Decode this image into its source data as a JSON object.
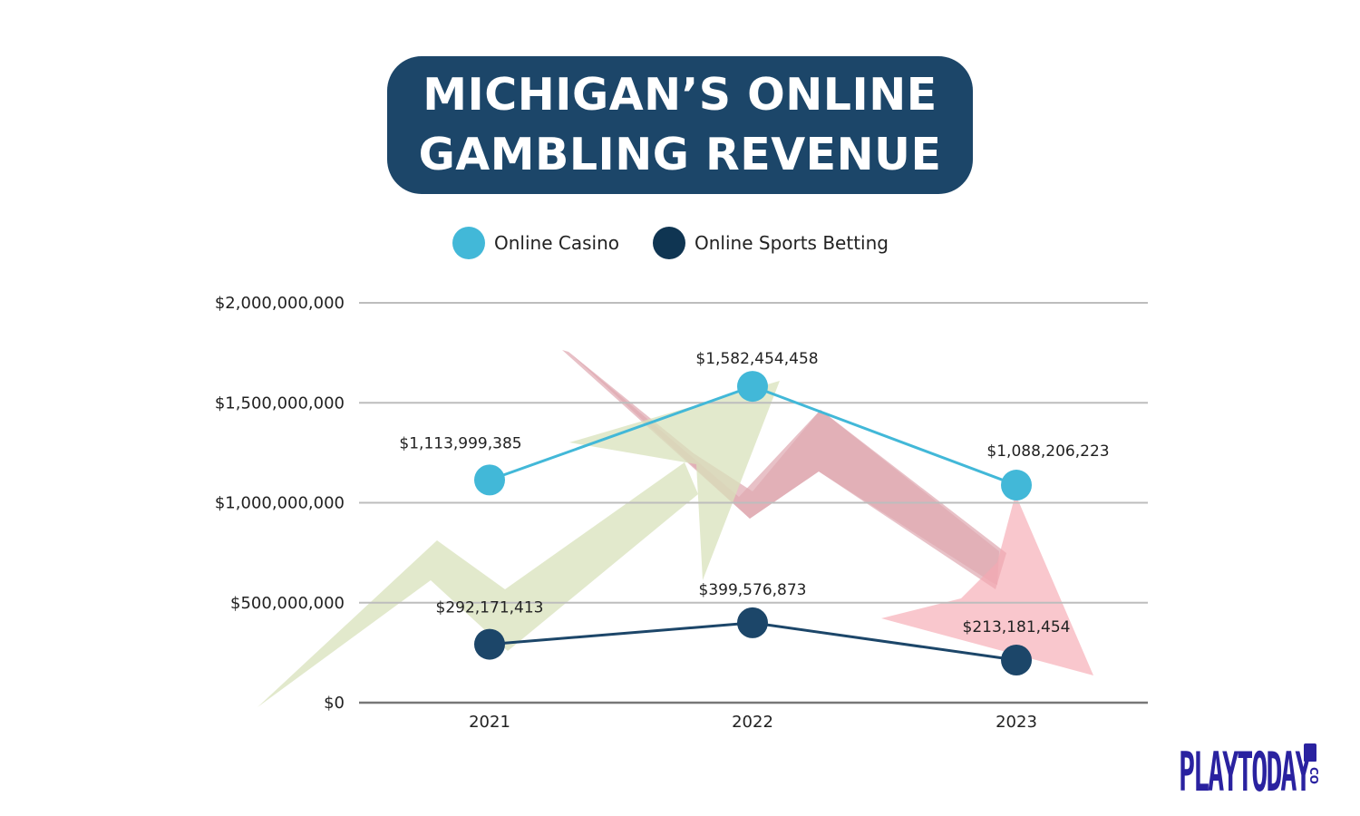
{
  "title": {
    "line1": "MICHIGAN’S ONLINE",
    "line2": "GAMBLING REVENUE"
  },
  "legend": [
    {
      "label": "Online Casino",
      "color": "#42b8d8"
    },
    {
      "label": "Online Sports Betting",
      "color": "#0f3552"
    }
  ],
  "chart_data": {
    "type": "line",
    "title": "MICHIGAN’S ONLINE GAMBLING REVENUE",
    "xlabel": "",
    "ylabel": "",
    "categories": [
      "2021",
      "2022",
      "2023"
    ],
    "ylim": [
      0,
      2000000000
    ],
    "yticks": [
      0,
      500000000,
      1000000000,
      1500000000,
      2000000000
    ],
    "ytick_labels": [
      "$0",
      "$500,000,000",
      "$1,000,000,000",
      "$1,500,000,000",
      "$2,000,000,000"
    ],
    "grid": true,
    "legend_position": "top-center",
    "series": [
      {
        "name": "Online Casino",
        "color": "#42b8d8",
        "line_color": "#42b8d8",
        "values": [
          1113999385,
          1582454458,
          1088206223
        ],
        "labels": [
          "$1,113,999,385",
          "$1,582,454,458",
          "$1,088,206,223"
        ]
      },
      {
        "name": "Online Sports Betting",
        "color": "#1c4669",
        "line_color": "#1c4669",
        "values": [
          292171413,
          399576873,
          213181454
        ],
        "labels": [
          "$292,171,413",
          "$399,576,873",
          "$213,181,454"
        ]
      }
    ]
  },
  "logo": {
    "word": "PLAYTODAY",
    "suffix": "CO",
    "color": "#2a22a0"
  }
}
